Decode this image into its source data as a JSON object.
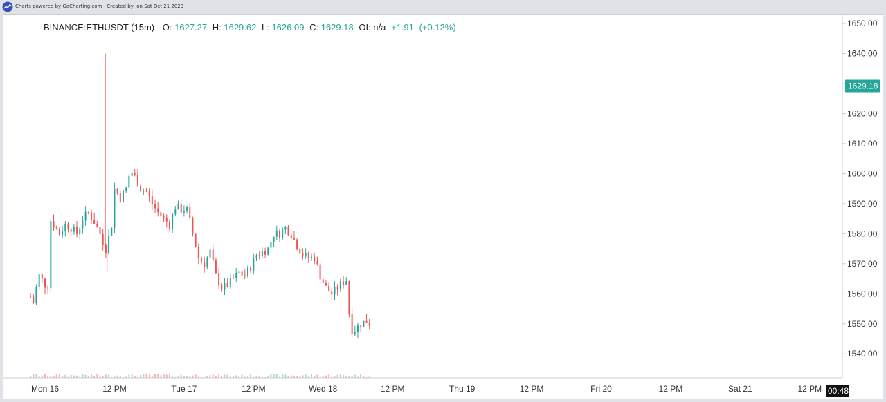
{
  "header": {
    "credit": "Charts powered by GoCharting.com - Created by  on Sat Oct 21 2023"
  },
  "legend": {
    "symbol": "BINANCE:ETHUSDT (15m)",
    "open_label": "O:",
    "open": "1627.27",
    "high_label": "H:",
    "high": "1629.62",
    "low_label": "L:",
    "low": "1626.09",
    "close_label": "C:",
    "close": "1629.18",
    "oi_label": "OI:",
    "oi": "n/a",
    "change": "+1.91",
    "change_pct": "(+0.12%)"
  },
  "colors": {
    "up": "#26a69a",
    "down": "#ef5350",
    "price_line": "#26a69a"
  },
  "chart_data": {
    "type": "candlestick",
    "symbol": "BINANCE:ETHUSDT",
    "interval": "15m",
    "ylim": [
      1532,
      1653
    ],
    "yticks": [
      1540,
      1550,
      1560,
      1570,
      1580,
      1590,
      1600,
      1610,
      1620,
      1630,
      1640,
      1650
    ],
    "ytick_labels": [
      "1540.00",
      "1550.00",
      "1560.00",
      "1570.00",
      "1580.00",
      "1590.00",
      "1600.00",
      "1610.00",
      "1620.00",
      "1630.00",
      "1640.00",
      "1650.00"
    ],
    "xlim": [
      -2.5,
      56.1
    ],
    "xticks": [
      {
        "hour": 0,
        "label": "Mon 16"
      },
      {
        "hour": 12,
        "label": "12 PM"
      },
      {
        "hour": 24,
        "label": "Tue 17"
      },
      {
        "hour": 36,
        "label": "12 PM"
      },
      {
        "hour": 48,
        "label": "Wed 18"
      },
      {
        "hour": 60,
        "label": "12 PM"
      },
      {
        "hour": 72,
        "label": "Thu 19"
      },
      {
        "hour": 84,
        "label": "12 PM"
      },
      {
        "hour": 96,
        "label": "Fri 20"
      },
      {
        "hour": 108,
        "label": "12 PM"
      },
      {
        "hour": 120,
        "label": "Sat 21"
      },
      {
        "hour": 132,
        "label": "12 PM"
      }
    ],
    "last_price": 1629.18,
    "last_price_label": "1629.18",
    "countdown": "00:48",
    "price_path": [
      {
        "h": -2.5,
        "p": 1559
      },
      {
        "h": -2.0,
        "p": 1557
      },
      {
        "h": -1.5,
        "p": 1562
      },
      {
        "h": -1.0,
        "p": 1566
      },
      {
        "h": 0.0,
        "p": 1563
      },
      {
        "h": 0.5,
        "p": 1563
      },
      {
        "h": 0.8,
        "p": 1585
      },
      {
        "h": 1.5,
        "p": 1583
      },
      {
        "h": 2.5,
        "p": 1580
      },
      {
        "h": 3.5,
        "p": 1583
      },
      {
        "h": 4.5,
        "p": 1582
      },
      {
        "h": 5.5,
        "p": 1580
      },
      {
        "h": 6.5,
        "p": 1585
      },
      {
        "h": 7.5,
        "p": 1587
      },
      {
        "h": 8.5,
        "p": 1584
      },
      {
        "h": 9.5,
        "p": 1580
      },
      {
        "h": 10.5,
        "p": 1575
      },
      {
        "h": 11.5,
        "p": 1583
      },
      {
        "h": 12.0,
        "p": 1595
      },
      {
        "h": 13.0,
        "p": 1592
      },
      {
        "h": 14.0,
        "p": 1595
      },
      {
        "h": 14.7,
        "p": 1601
      },
      {
        "h": 15.5,
        "p": 1599
      },
      {
        "h": 16.5,
        "p": 1595
      },
      {
        "h": 17.5,
        "p": 1594
      },
      {
        "h": 18.5,
        "p": 1590
      },
      {
        "h": 19.5,
        "p": 1587
      },
      {
        "h": 20.5,
        "p": 1585
      },
      {
        "h": 21.5,
        "p": 1583
      },
      {
        "h": 22.5,
        "p": 1589
      },
      {
        "h": 23.5,
        "p": 1588
      },
      {
        "h": 24.5,
        "p": 1588
      },
      {
        "h": 25.5,
        "p": 1580
      },
      {
        "h": 26.5,
        "p": 1572
      },
      {
        "h": 27.5,
        "p": 1570
      },
      {
        "h": 28.5,
        "p": 1574
      },
      {
        "h": 29.5,
        "p": 1566
      },
      {
        "h": 30.5,
        "p": 1562
      },
      {
        "h": 31.5,
        "p": 1563
      },
      {
        "h": 32.5,
        "p": 1565
      },
      {
        "h": 33.5,
        "p": 1567
      },
      {
        "h": 34.5,
        "p": 1566
      },
      {
        "h": 35.5,
        "p": 1569
      },
      {
        "h": 36.5,
        "p": 1573
      },
      {
        "h": 37.5,
        "p": 1574
      },
      {
        "h": 38.5,
        "p": 1575
      },
      {
        "h": 39.5,
        "p": 1580
      },
      {
        "h": 40.5,
        "p": 1580
      },
      {
        "h": 41.5,
        "p": 1582
      },
      {
        "h": 42.5,
        "p": 1580
      },
      {
        "h": 43.5,
        "p": 1576
      },
      {
        "h": 44.5,
        "p": 1573
      },
      {
        "h": 45.5,
        "p": 1572
      },
      {
        "h": 46.5,
        "p": 1572
      },
      {
        "h": 47.5,
        "p": 1566
      },
      {
        "h": 48.5,
        "p": 1562
      },
      {
        "h": 49.5,
        "p": 1560
      },
      {
        "h": 50.5,
        "p": 1562
      },
      {
        "h": 51.5,
        "p": 1564
      },
      {
        "h": 52.3,
        "p": 1565
      },
      {
        "h": 52.6,
        "p": 1548
      },
      {
        "h": 53.5,
        "p": 1548
      },
      {
        "h": 54.5,
        "p": 1550
      },
      {
        "h": 55.5,
        "p": 1551
      },
      {
        "h": 56.1,
        "p": 1550
      }
    ],
    "spikes": [
      {
        "h": 10.4,
        "p": 1640,
        "color": "down"
      },
      {
        "h": 10.7,
        "p": 1567,
        "color": "down"
      }
    ]
  }
}
